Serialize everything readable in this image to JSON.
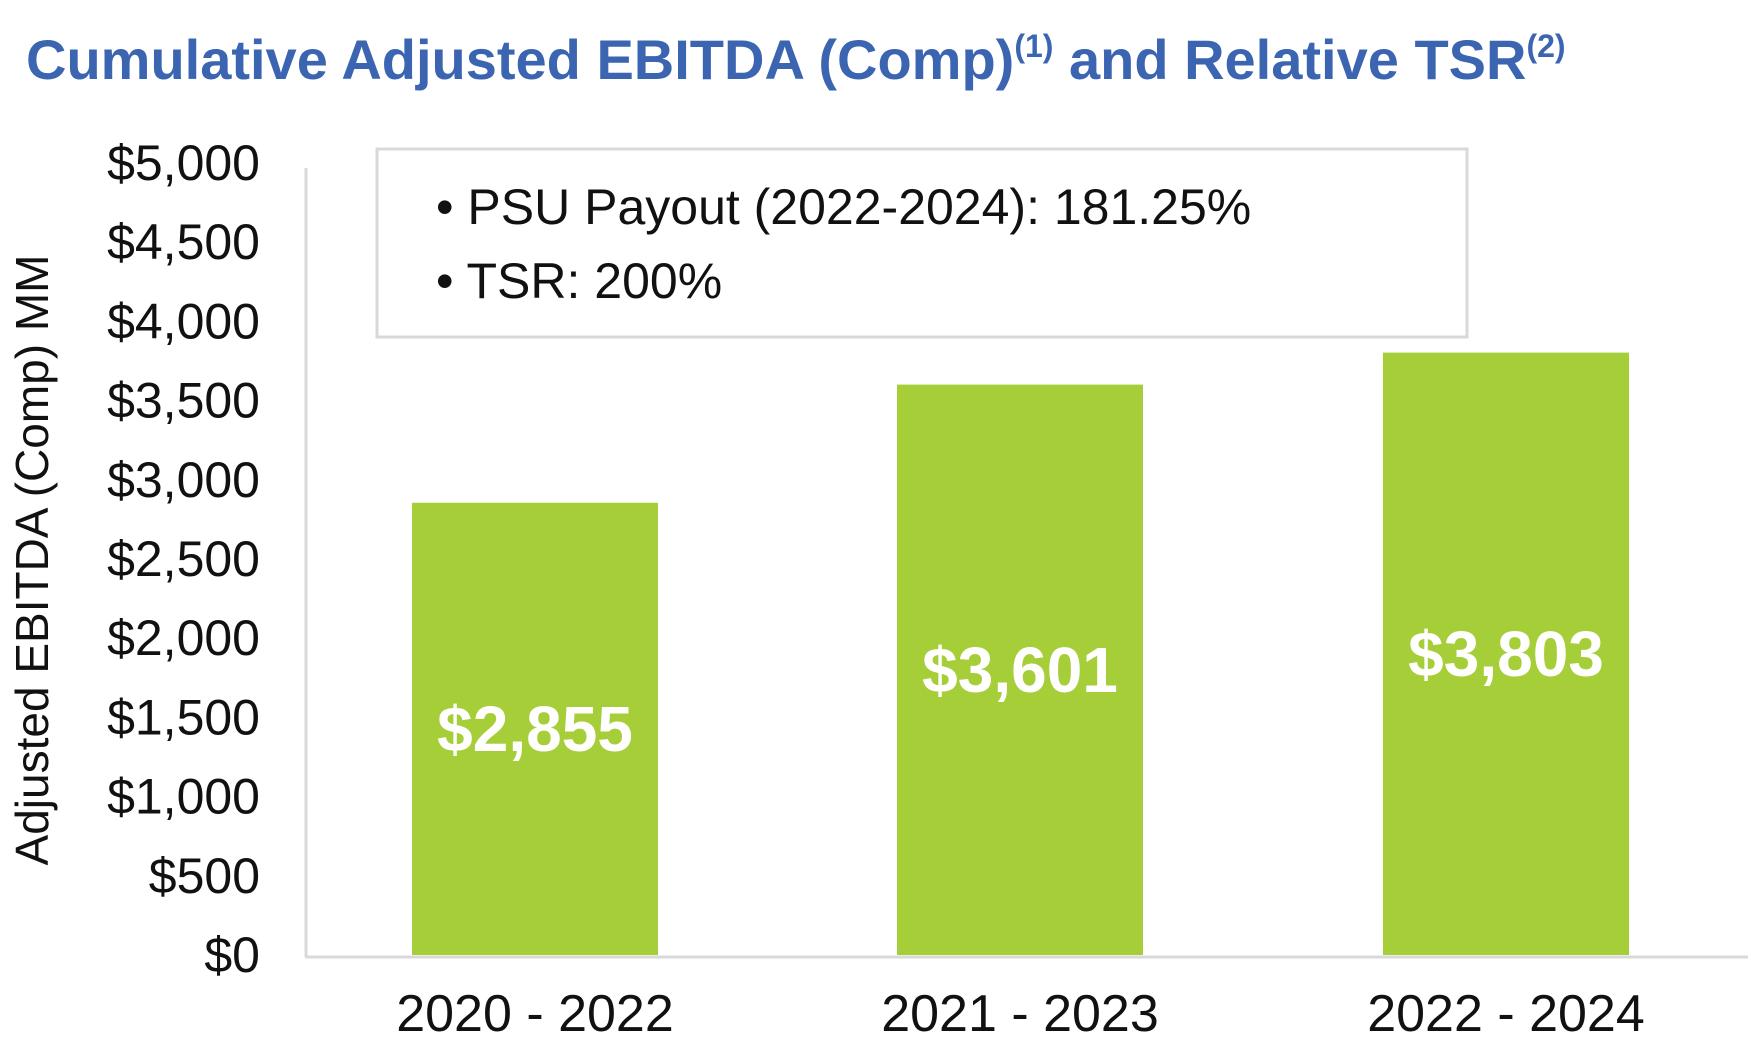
{
  "chart_data": {
    "type": "bar",
    "title": "Cumulative Adjusted EBITDA (Comp)",
    "title_sup1": "(1)",
    "title_mid": " and Relative TSR",
    "title_sup2": "(2)",
    "ylabel": "Adjusted EBITDA (Comp) MM",
    "xlabel": "",
    "categories": [
      "2020 - 2022",
      "2021 - 2023",
      "2022 - 2024"
    ],
    "values": [
      2855,
      3601,
      3803
    ],
    "data_labels": [
      "$2,855",
      "$3,601",
      "$3,803"
    ],
    "ylim": [
      0,
      5000
    ],
    "yticks": [
      0,
      500,
      1000,
      1500,
      2000,
      2500,
      3000,
      3500,
      4000,
      4500,
      5000
    ],
    "ytick_labels": [
      "$0",
      "$500",
      "$1,000",
      "$1,500",
      "$2,000",
      "$2,500",
      "$3,000",
      "$3,500",
      "$4,000",
      "$4,500",
      "$5,000"
    ],
    "grid": false,
    "bar_color": "#a6ce39",
    "title_color": "#3b64b1",
    "annotations": [
      "PSU Payout (2022-2024): 181.25%",
      "TSR: 200%"
    ]
  }
}
